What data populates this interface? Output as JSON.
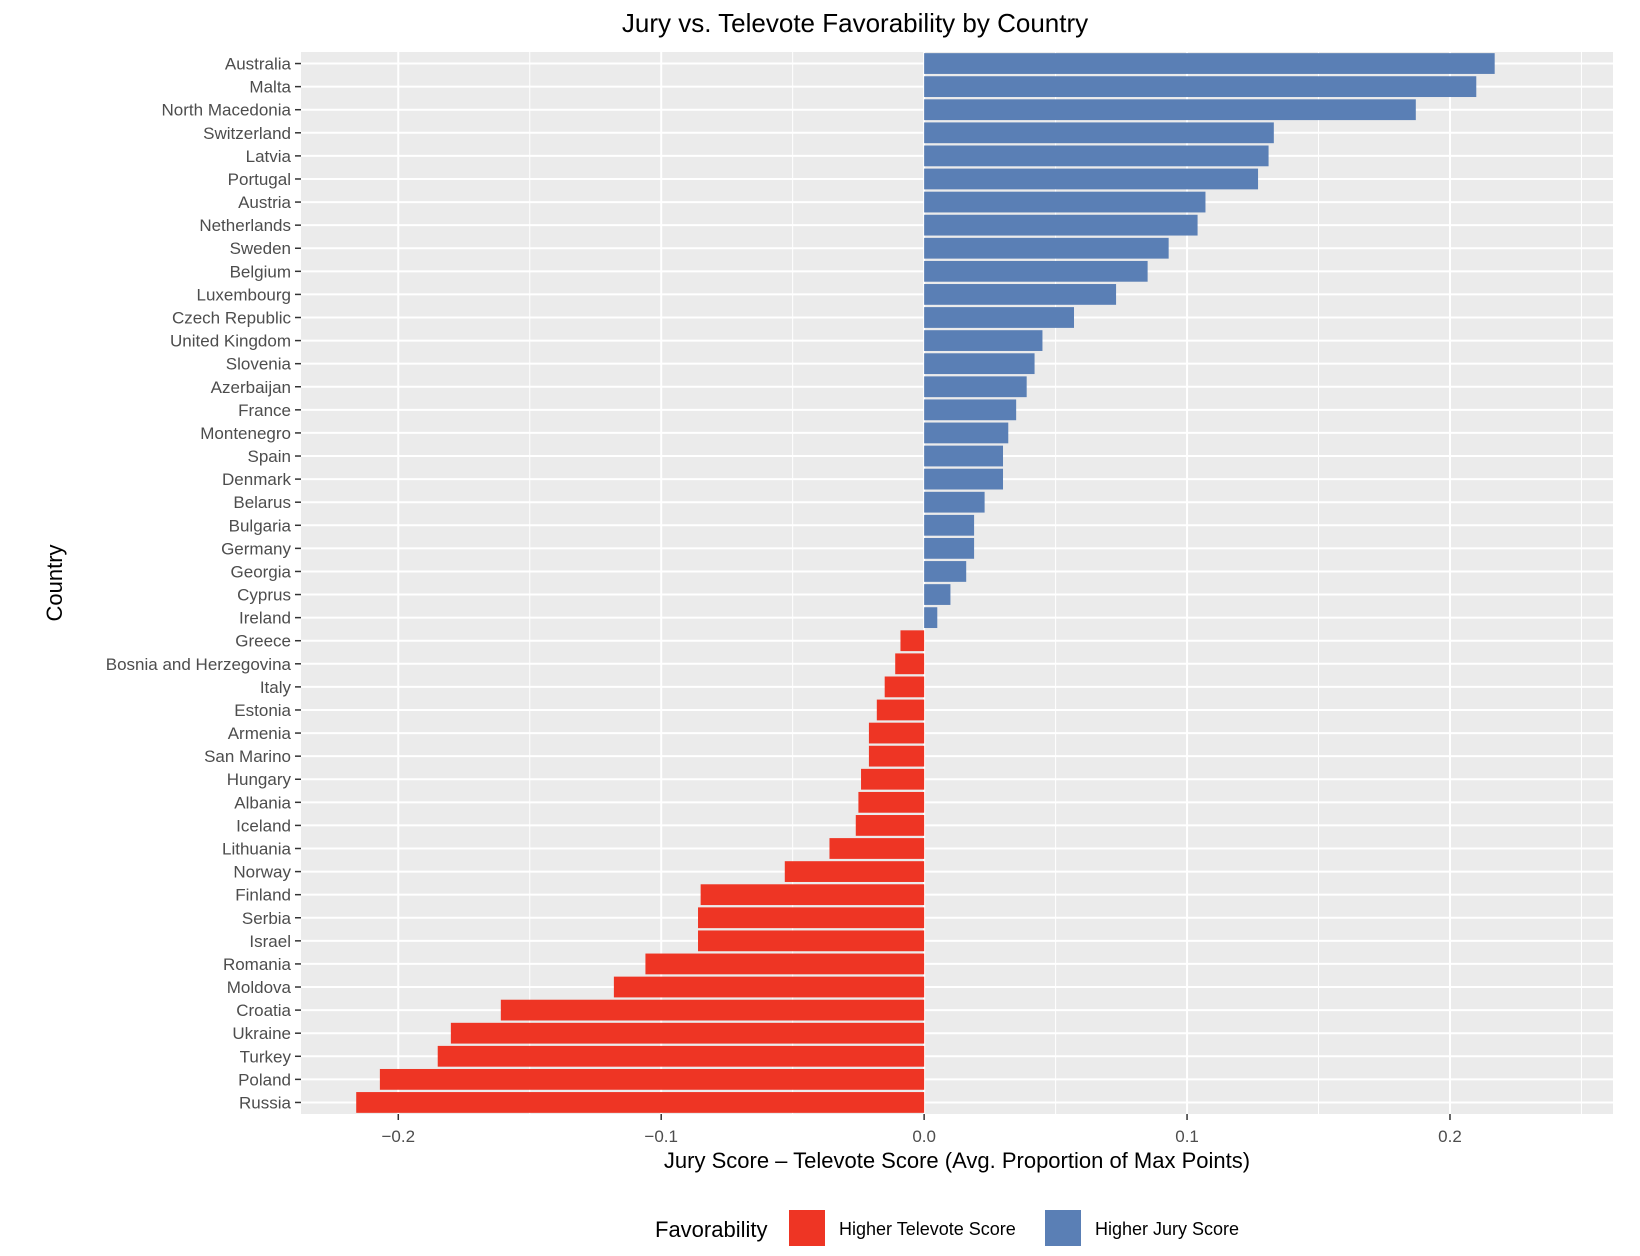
{
  "chart_data": {
    "type": "bar",
    "orientation": "horizontal",
    "title": "Jury vs. Televote Favorability by Country",
    "xlabel": "Jury Score – Televote Score (Avg. Proportion of Max Points)",
    "ylabel": "Country",
    "xlim": [
      -0.237,
      0.262
    ],
    "xticks": [
      -0.2,
      -0.1,
      0.0,
      0.1,
      0.2
    ],
    "xtick_labels": [
      "−0.2",
      "−0.1",
      "0.0",
      "0.1",
      "0.2"
    ],
    "grid": true,
    "legend_position": "bottom",
    "legend": {
      "title": "Favorability",
      "items": [
        {
          "label": "Higher Televote Score",
          "color": "#EE3524"
        },
        {
          "label": "Higher Jury Score",
          "color": "#5A7FB5"
        }
      ]
    },
    "categories": [
      "Australia",
      "Malta",
      "North Macedonia",
      "Switzerland",
      "Latvia",
      "Portugal",
      "Austria",
      "Netherlands",
      "Sweden",
      "Belgium",
      "Luxembourg",
      "Czech Republic",
      "United Kingdom",
      "Slovenia",
      "Azerbaijan",
      "France",
      "Montenegro",
      "Spain",
      "Denmark",
      "Belarus",
      "Bulgaria",
      "Germany",
      "Georgia",
      "Cyprus",
      "Ireland",
      "Greece",
      "Bosnia and Herzegovina",
      "Italy",
      "Estonia",
      "Armenia",
      "San Marino",
      "Hungary",
      "Albania",
      "Iceland",
      "Lithuania",
      "Norway",
      "Finland",
      "Serbia",
      "Israel",
      "Romania",
      "Moldova",
      "Croatia",
      "Ukraine",
      "Turkey",
      "Poland",
      "Russia"
    ],
    "values": [
      0.217,
      0.21,
      0.187,
      0.133,
      0.131,
      0.127,
      0.107,
      0.104,
      0.093,
      0.085,
      0.073,
      0.057,
      0.045,
      0.042,
      0.039,
      0.035,
      0.032,
      0.03,
      0.03,
      0.023,
      0.019,
      0.019,
      0.016,
      0.01,
      0.005,
      -0.009,
      -0.011,
      -0.015,
      -0.018,
      -0.021,
      -0.021,
      -0.024,
      -0.025,
      -0.026,
      -0.036,
      -0.053,
      -0.085,
      -0.086,
      -0.086,
      -0.106,
      -0.118,
      -0.161,
      -0.18,
      -0.185,
      -0.207,
      -0.216
    ]
  }
}
